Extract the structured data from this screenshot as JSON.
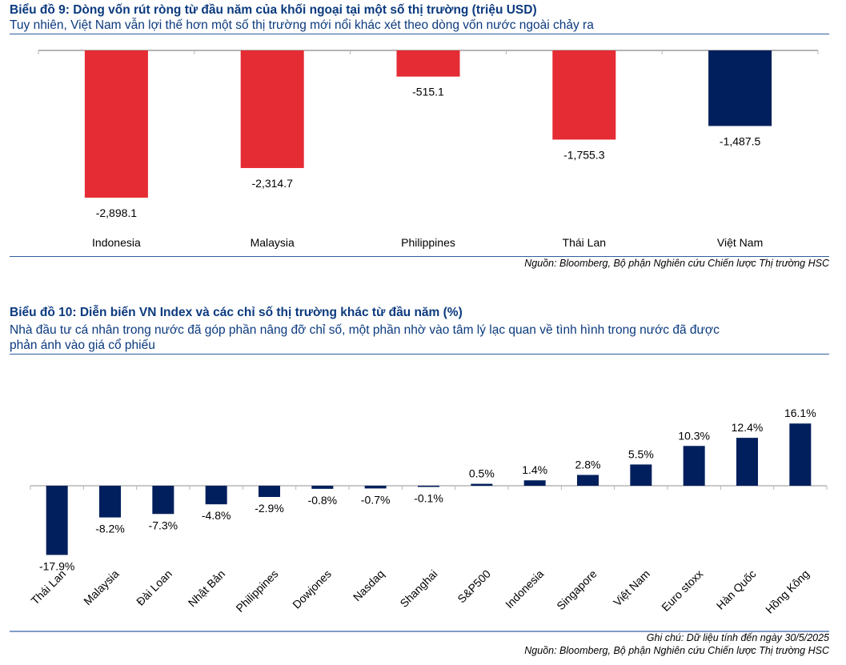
{
  "chart9": {
    "title": "Biểu đồ 9: Dòng vốn rút ròng từ đầu năm của khối ngoại tại một số thị trường (triệu USD)",
    "subtitle": "Tuy nhiên, Việt Nam vẫn lợi thế hơn một số thị trường mới nổi khác xét theo dòng vốn nước ngoài chảy ra",
    "source": "Nguồn: Bloomberg, Bộ phận Nghiên cứu Chiến lược Thị trường HSC"
  },
  "chart10": {
    "title": "Biểu đồ 10: Diễn biến VN Index và các chỉ số thị trường khác từ đầu năm (%)",
    "subtitle_line1": "Nhà đầu tư cá nhân trong nước đã góp phần nâng đỡ chỉ số, một phần nhờ vào tâm lý lạc quan về tình hình trong nước đã được",
    "subtitle_line2": "phản ánh vào giá cổ phiếu",
    "note": "Ghi chú: Dữ liệu tính đến ngày 30/5/2025",
    "source": "Nguồn: Bloomberg, Bộ phận Nghiên cứu Chiến lược Thị trường HSC"
  },
  "colors": {
    "negative_red": "#e52b33",
    "navy": "#001f5c",
    "title_blue": "#0b3a7e",
    "axis_gray": "#b5b5b5"
  },
  "chart_data": [
    {
      "type": "bar",
      "title": "Biểu đồ 9: Dòng vốn rút ròng từ đầu năm của khối ngoại tại một số thị trường (triệu USD)",
      "xlabel": "",
      "ylabel": "",
      "categories": [
        "Indonesia",
        "Malaysia",
        "Philippines",
        "Thái Lan",
        "Việt Nam"
      ],
      "values": [
        -2898.1,
        -2314.7,
        -515.1,
        -1755.3,
        -1487.5
      ],
      "data_labels": [
        "-2,898.1",
        "-2,314.7",
        "-515.1",
        "-1,755.3",
        "-1,487.5"
      ],
      "bar_colors": [
        "#e52b33",
        "#e52b33",
        "#e52b33",
        "#e52b33",
        "#001f5c"
      ],
      "ylim": [
        -2898.1,
        0
      ],
      "grid": false,
      "legend": "none"
    },
    {
      "type": "bar",
      "title": "Biểu đồ 10: Diễn biến VN Index và các chỉ số thị trường khác từ đầu năm (%)",
      "xlabel": "",
      "ylabel": "",
      "categories": [
        "Thái Lan",
        "Malaysia",
        "Đài Loan",
        "Nhật Bản",
        "Philippines",
        "Dowjones",
        "Nasdaq",
        "Shanghai",
        "S&P500",
        "Indonesia",
        "Singapore",
        "Việt Nam",
        "Euro stoxx",
        "Hàn Quốc",
        "Hồng Kông"
      ],
      "values": [
        -17.9,
        -8.2,
        -7.3,
        -4.8,
        -2.9,
        -0.8,
        -0.7,
        -0.1,
        0.5,
        1.4,
        2.8,
        5.5,
        10.3,
        12.4,
        16.1
      ],
      "data_labels": [
        "-17.9%",
        "-8.2%",
        "-7.3%",
        "-4.8%",
        "-2.9%",
        "-0.8%",
        "-0.7%",
        "-0.1%",
        "0.5%",
        "1.4%",
        "2.8%",
        "5.5%",
        "10.3%",
        "12.4%",
        "16.1%"
      ],
      "bar_color": "#001f5c",
      "ylim": [
        -17.9,
        16.1
      ],
      "grid": false,
      "legend": "none"
    }
  ]
}
